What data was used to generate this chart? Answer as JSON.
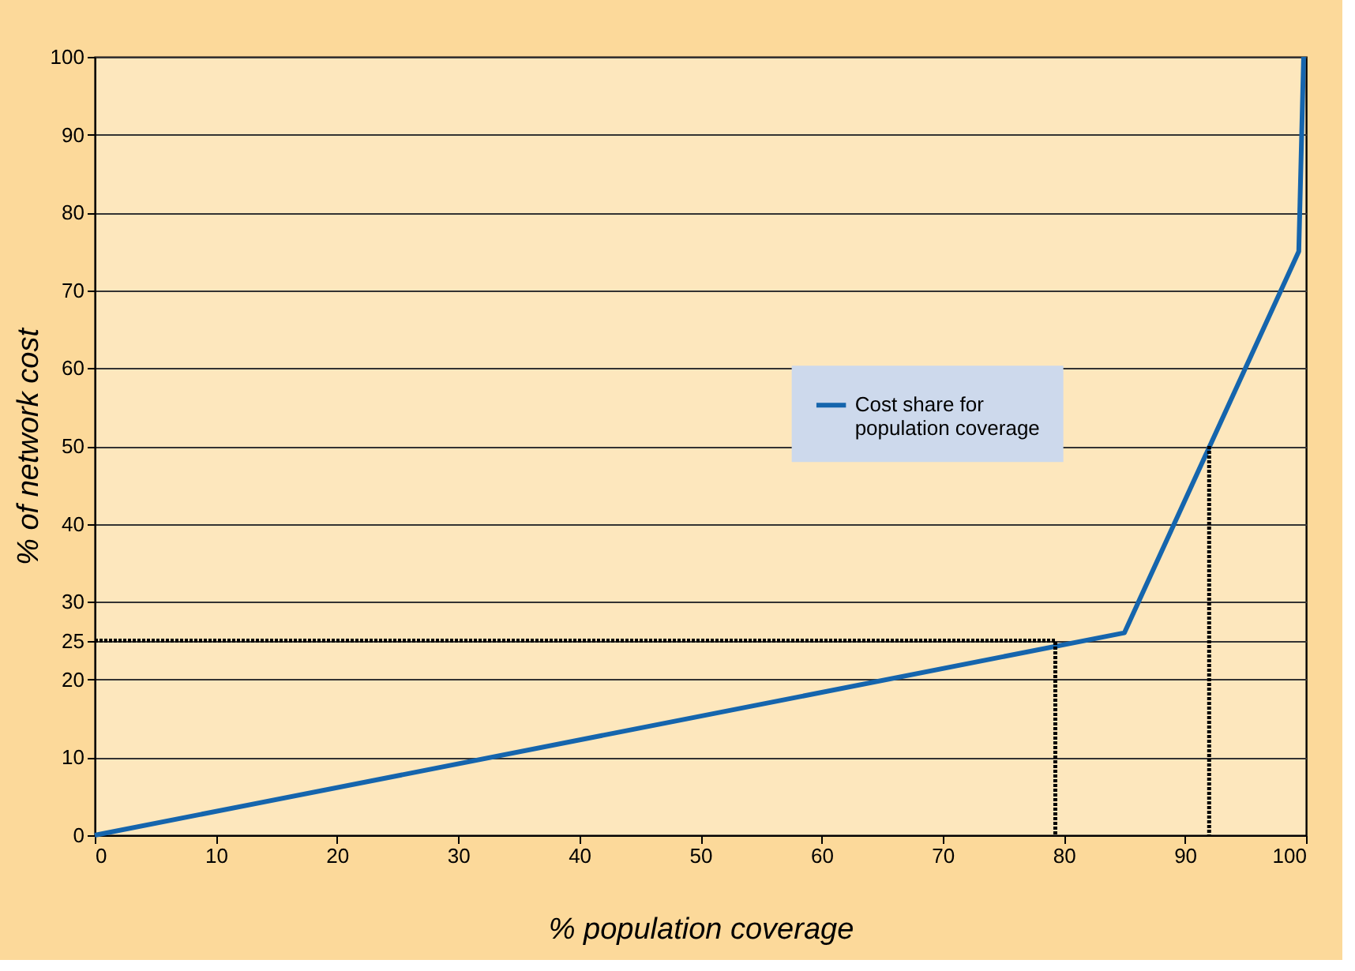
{
  "chart_data": {
    "type": "line",
    "xlabel": "% population coverage",
    "ylabel": "% of network cost",
    "series": [
      {
        "name": "Cost share for population coverage",
        "color": "#1565ad",
        "x": [
          0,
          85,
          99.4,
          99.8
        ],
        "values": [
          0,
          26,
          75,
          100
        ]
      },
      {
        "color": "#000000",
        "line_style": "dotted",
        "x": [
          0,
          79.3,
          79.3
        ],
        "values": [
          25,
          25,
          0
        ]
      },
      {
        "color": "#000000",
        "line_style": "dotted",
        "x": [
          92,
          92
        ],
        "values": [
          50,
          0
        ]
      }
    ],
    "xlim": [
      0,
      100
    ],
    "ylim": [
      0,
      100
    ],
    "xticks": [
      0,
      10,
      20,
      30,
      40,
      50,
      60,
      70,
      80,
      90,
      100
    ],
    "yticks": [
      0,
      10,
      20,
      25,
      30,
      40,
      50,
      60,
      70,
      80,
      90,
      100
    ],
    "grid": "y",
    "legend": "right",
    "marker": "none"
  }
}
